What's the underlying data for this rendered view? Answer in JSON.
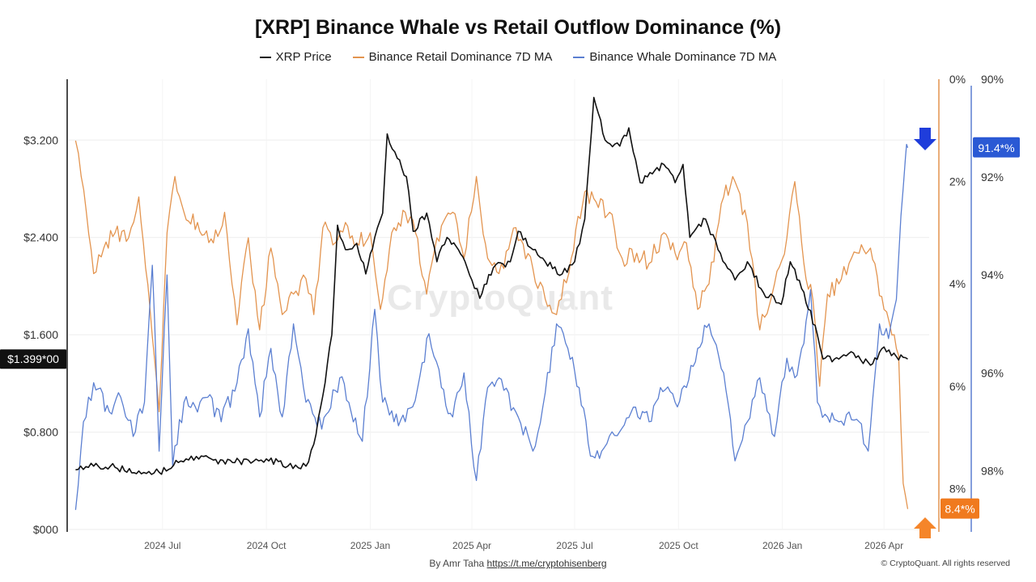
{
  "chart_data": {
    "type": "line",
    "title": "[XRP] Binance Whale vs Retail Outflow Dominance (%)",
    "legend": [
      "XRP Price",
      "Binance Retail Dominance 7D MA",
      "Binance Whale Dominance 7D MA"
    ],
    "legend_placement": "top-center",
    "grid": true,
    "x_ticks": [
      "2024 Jul",
      "2024 Oct",
      "2025 Jan",
      "2025 Apr",
      "2025 Jul",
      "2025 Oct",
      "2026 Jan",
      "2026 Apr"
    ],
    "y_left": {
      "ticks": [
        "$000",
        "$0.800",
        "$1.600",
        "$2.400",
        "$3.200"
      ],
      "range": [
        0,
        3.7
      ],
      "unit": "USD"
    },
    "y_retail": {
      "ticks": [
        "0%",
        "2%",
        "4%",
        "6%",
        "8%"
      ],
      "range": [
        0,
        8.8
      ],
      "inverted": true,
      "unit": "%"
    },
    "y_whale": {
      "ticks": [
        "90%",
        "92%",
        "94%",
        "96%",
        "98%"
      ],
      "range": [
        90,
        99.2
      ],
      "inverted": true,
      "unit": "%"
    },
    "badges": {
      "price": "$1.399*00",
      "whale": "91.4*%",
      "retail": "8.4*%"
    },
    "colors": {
      "price": "#111111",
      "retail": "#e3944f",
      "whale": "#5b7fd1",
      "whale_badge": "#2a59d4",
      "retail_badge": "#f07a1e",
      "arrow_down": "#1f3ddb",
      "arrow_up": "#f5852a"
    },
    "series": [
      {
        "name": "XRP Price",
        "axis": "left",
        "points": [
          [
            "2024-04-15",
            0.49
          ],
          [
            "2024-05-01",
            0.52
          ],
          [
            "2024-05-20",
            0.51
          ],
          [
            "2024-06-10",
            0.48
          ],
          [
            "2024-06-28",
            0.47
          ],
          [
            "2024-07-15",
            0.55
          ],
          [
            "2024-07-31",
            0.6
          ],
          [
            "2024-08-15",
            0.57
          ],
          [
            "2024-09-01",
            0.55
          ],
          [
            "2024-09-15",
            0.57
          ],
          [
            "2024-10-01",
            0.58
          ],
          [
            "2024-10-20",
            0.52
          ],
          [
            "2024-11-05",
            0.52
          ],
          [
            "2024-11-12",
            0.7
          ],
          [
            "2024-11-20",
            1.1
          ],
          [
            "2024-11-28",
            1.6
          ],
          [
            "2024-12-03",
            2.5
          ],
          [
            "2024-12-10",
            2.3
          ],
          [
            "2024-12-20",
            2.35
          ],
          [
            "2024-12-28",
            2.1
          ],
          [
            "2025-01-05",
            2.4
          ],
          [
            "2025-01-12",
            2.6
          ],
          [
            "2025-01-16",
            3.25
          ],
          [
            "2025-01-25",
            3.05
          ],
          [
            "2025-02-02",
            2.9
          ],
          [
            "2025-02-08",
            2.45
          ],
          [
            "2025-02-20",
            2.6
          ],
          [
            "2025-03-01",
            2.2
          ],
          [
            "2025-03-10",
            2.4
          ],
          [
            "2025-03-20",
            2.3
          ],
          [
            "2025-04-01",
            2.05
          ],
          [
            "2025-04-08",
            1.9
          ],
          [
            "2025-04-20",
            2.15
          ],
          [
            "2025-05-05",
            2.2
          ],
          [
            "2025-05-12",
            2.45
          ],
          [
            "2025-05-25",
            2.3
          ],
          [
            "2025-06-05",
            2.2
          ],
          [
            "2025-06-20",
            2.1
          ],
          [
            "2025-07-01",
            2.2
          ],
          [
            "2025-07-10",
            2.55
          ],
          [
            "2025-07-18",
            3.55
          ],
          [
            "2025-07-28",
            3.2
          ],
          [
            "2025-08-10",
            3.15
          ],
          [
            "2025-08-18",
            3.3
          ],
          [
            "2025-08-28",
            2.85
          ],
          [
            "2025-09-10",
            2.95
          ],
          [
            "2025-09-18",
            3.0
          ],
          [
            "2025-09-28",
            2.85
          ],
          [
            "2025-10-05",
            3.0
          ],
          [
            "2025-10-11",
            2.4
          ],
          [
            "2025-10-25",
            2.55
          ],
          [
            "2025-11-05",
            2.3
          ],
          [
            "2025-11-20",
            2.05
          ],
          [
            "2025-12-01",
            2.2
          ],
          [
            "2025-12-15",
            1.95
          ],
          [
            "2025-12-31",
            1.85
          ],
          [
            "2026-01-08",
            2.2
          ],
          [
            "2026-01-20",
            1.95
          ],
          [
            "2026-02-01",
            1.6
          ],
          [
            "2026-02-06",
            1.4
          ],
          [
            "2026-02-20",
            1.4
          ],
          [
            "2026-03-05",
            1.45
          ],
          [
            "2026-03-20",
            1.35
          ],
          [
            "2026-04-01",
            1.5
          ],
          [
            "2026-04-12",
            1.42
          ],
          [
            "2026-04-22",
            1.4
          ]
        ]
      },
      {
        "name": "Binance Retail Dominance 7D MA",
        "axis": "right-retail",
        "points": [
          [
            "2024-04-15",
            1.2
          ],
          [
            "2024-04-20",
            1.9
          ],
          [
            "2024-05-01",
            3.8
          ],
          [
            "2024-05-10",
            3.3
          ],
          [
            "2024-05-20",
            3.0
          ],
          [
            "2024-06-01",
            3.1
          ],
          [
            "2024-06-10",
            2.3
          ],
          [
            "2024-06-20",
            4.5
          ],
          [
            "2024-06-28",
            6.5
          ],
          [
            "2024-07-05",
            3.0
          ],
          [
            "2024-07-12",
            1.9
          ],
          [
            "2024-07-20",
            2.6
          ],
          [
            "2024-08-01",
            2.8
          ],
          [
            "2024-08-15",
            3.2
          ],
          [
            "2024-08-25",
            2.6
          ],
          [
            "2024-09-05",
            4.8
          ],
          [
            "2024-09-15",
            3.1
          ],
          [
            "2024-09-25",
            4.9
          ],
          [
            "2024-10-05",
            3.3
          ],
          [
            "2024-10-15",
            4.6
          ],
          [
            "2024-10-25",
            4.2
          ],
          [
            "2024-11-05",
            3.9
          ],
          [
            "2024-11-12",
            4.6
          ],
          [
            "2024-11-20",
            2.9
          ],
          [
            "2024-12-01",
            3.2
          ],
          [
            "2024-12-10",
            2.8
          ],
          [
            "2024-12-20",
            3.2
          ],
          [
            "2025-01-01",
            3.0
          ],
          [
            "2025-01-10",
            4.5
          ],
          [
            "2025-01-20",
            3.0
          ],
          [
            "2025-02-01",
            2.6
          ],
          [
            "2025-02-10",
            3.0
          ],
          [
            "2025-02-20",
            4.2
          ],
          [
            "2025-03-01",
            3.1
          ],
          [
            "2025-03-15",
            2.6
          ],
          [
            "2025-03-25",
            3.5
          ],
          [
            "2025-04-05",
            1.9
          ],
          [
            "2025-04-15",
            3.5
          ],
          [
            "2025-04-25",
            3.8
          ],
          [
            "2025-05-10",
            2.9
          ],
          [
            "2025-05-25",
            3.7
          ],
          [
            "2025-06-05",
            4.3
          ],
          [
            "2025-06-15",
            4.6
          ],
          [
            "2025-06-28",
            3.5
          ],
          [
            "2025-07-10",
            2.2
          ],
          [
            "2025-07-20",
            2.4
          ],
          [
            "2025-08-01",
            2.6
          ],
          [
            "2025-08-12",
            3.5
          ],
          [
            "2025-08-25",
            3.4
          ],
          [
            "2025-09-05",
            3.6
          ],
          [
            "2025-09-18",
            3.0
          ],
          [
            "2025-09-28",
            3.4
          ],
          [
            "2025-10-08",
            3.2
          ],
          [
            "2025-10-18",
            4.5
          ],
          [
            "2025-10-28",
            4.0
          ],
          [
            "2025-11-10",
            2.3
          ],
          [
            "2025-11-20",
            2.0
          ],
          [
            "2025-12-01",
            2.8
          ],
          [
            "2025-12-12",
            4.9
          ],
          [
            "2025-12-25",
            4.0
          ],
          [
            "2026-01-05",
            3.1
          ],
          [
            "2026-01-12",
            2.0
          ],
          [
            "2026-01-20",
            3.6
          ],
          [
            "2026-01-28",
            4.3
          ],
          [
            "2026-02-03",
            6.0
          ],
          [
            "2026-02-10",
            4.2
          ],
          [
            "2026-02-20",
            4.0
          ],
          [
            "2026-03-01",
            3.6
          ],
          [
            "2026-03-10",
            3.4
          ],
          [
            "2026-03-20",
            3.3
          ],
          [
            "2026-04-01",
            4.5
          ],
          [
            "2026-04-08",
            5.0
          ],
          [
            "2026-04-14",
            5.4
          ],
          [
            "2026-04-18",
            7.9
          ],
          [
            "2026-04-22",
            8.4
          ]
        ]
      },
      {
        "name": "Binance Whale Dominance 7D MA",
        "axis": "right-whale",
        "points": [
          [
            "2024-04-15",
            98.8
          ],
          [
            "2024-04-22",
            97.0
          ],
          [
            "2024-05-01",
            96.2
          ],
          [
            "2024-05-15",
            96.8
          ],
          [
            "2024-05-25",
            96.5
          ],
          [
            "2024-06-05",
            97.3
          ],
          [
            "2024-06-15",
            96.6
          ],
          [
            "2024-06-22",
            93.8
          ],
          [
            "2024-06-28",
            97.6
          ],
          [
            "2024-07-05",
            94.0
          ],
          [
            "2024-07-10",
            97.9
          ],
          [
            "2024-07-20",
            96.6
          ],
          [
            "2024-08-01",
            96.8
          ],
          [
            "2024-08-10",
            96.5
          ],
          [
            "2024-08-22",
            97.0
          ],
          [
            "2024-09-05",
            96.2
          ],
          [
            "2024-09-15",
            95.1
          ],
          [
            "2024-09-25",
            96.9
          ],
          [
            "2024-10-05",
            95.5
          ],
          [
            "2024-10-15",
            96.9
          ],
          [
            "2024-10-25",
            95.0
          ],
          [
            "2024-11-05",
            96.6
          ],
          [
            "2024-11-15",
            97.1
          ],
          [
            "2024-11-25",
            96.8
          ],
          [
            "2024-12-05",
            96.1
          ],
          [
            "2024-12-15",
            96.8
          ],
          [
            "2024-12-25",
            97.4
          ],
          [
            "2025-01-05",
            94.7
          ],
          [
            "2025-01-12",
            96.6
          ],
          [
            "2025-01-22",
            97.0
          ],
          [
            "2025-02-01",
            97.0
          ],
          [
            "2025-02-12",
            96.3
          ],
          [
            "2025-02-22",
            95.2
          ],
          [
            "2025-03-05",
            96.3
          ],
          [
            "2025-03-15",
            96.9
          ],
          [
            "2025-03-25",
            96.0
          ],
          [
            "2025-04-05",
            98.2
          ],
          [
            "2025-04-15",
            96.3
          ],
          [
            "2025-04-25",
            96.1
          ],
          [
            "2025-05-10",
            96.8
          ],
          [
            "2025-05-25",
            97.6
          ],
          [
            "2025-06-05",
            96.4
          ],
          [
            "2025-06-15",
            95.0
          ],
          [
            "2025-06-25",
            95.5
          ],
          [
            "2025-07-05",
            96.3
          ],
          [
            "2025-07-15",
            97.7
          ],
          [
            "2025-07-25",
            97.6
          ],
          [
            "2025-08-10",
            97.2
          ],
          [
            "2025-08-22",
            96.7
          ],
          [
            "2025-09-05",
            97.0
          ],
          [
            "2025-09-15",
            96.3
          ],
          [
            "2025-09-28",
            96.6
          ],
          [
            "2025-10-08",
            96.3
          ],
          [
            "2025-10-18",
            95.5
          ],
          [
            "2025-10-28",
            95.0
          ],
          [
            "2025-11-10",
            96.0
          ],
          [
            "2025-11-20",
            97.8
          ],
          [
            "2025-12-01",
            97.0
          ],
          [
            "2025-12-12",
            96.1
          ],
          [
            "2025-12-25",
            97.3
          ],
          [
            "2026-01-05",
            95.7
          ],
          [
            "2026-01-12",
            96.1
          ],
          [
            "2026-01-20",
            95.4
          ],
          [
            "2026-01-26",
            94.3
          ],
          [
            "2026-02-01",
            96.6
          ],
          [
            "2026-02-10",
            96.9
          ],
          [
            "2026-02-20",
            97.0
          ],
          [
            "2026-03-01",
            96.8
          ],
          [
            "2026-03-10",
            97.0
          ],
          [
            "2026-03-18",
            97.6
          ],
          [
            "2026-03-28",
            95.0
          ],
          [
            "2026-04-05",
            95.3
          ],
          [
            "2026-04-12",
            94.5
          ],
          [
            "2026-04-16",
            92.8
          ],
          [
            "2026-04-20",
            91.6
          ],
          [
            "2026-04-22",
            91.4
          ]
        ]
      }
    ]
  },
  "footer": {
    "credit_prefix": "By Amr Taha ",
    "credit_link": "https://t.me/cryptohisenberg",
    "copyright": "© CryptoQuant. All rights reserved"
  },
  "watermark": "CryptoQuant"
}
